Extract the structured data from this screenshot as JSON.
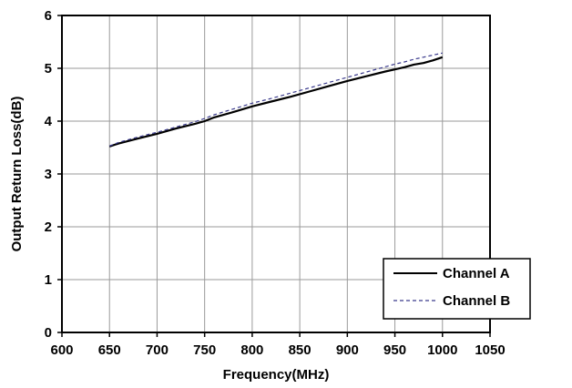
{
  "chart_data": {
    "type": "line",
    "title": "",
    "xlabel": "Frequency(MHz)",
    "ylabel": "Output Return Loss(dB)",
    "xlim": [
      600,
      1050
    ],
    "ylim": [
      0,
      6
    ],
    "xticks": [
      "600",
      "650",
      "700",
      "750",
      "800",
      "850",
      "900",
      "950",
      "1000",
      "1050"
    ],
    "yticks": [
      "0",
      "1",
      "2",
      "3",
      "4",
      "5",
      "6"
    ],
    "grid": true,
    "legend_position": "bottom-right",
    "series": [
      {
        "name": "Channel A",
        "style": "solid",
        "color": "#000000",
        "x": [
          650,
          660,
          680,
          700,
          720,
          740,
          750,
          760,
          780,
          800,
          820,
          840,
          860,
          880,
          900,
          920,
          940,
          950,
          960,
          970,
          980,
          990,
          1000
        ],
        "y": [
          3.52,
          3.58,
          3.67,
          3.76,
          3.86,
          3.95,
          4.0,
          4.07,
          4.17,
          4.28,
          4.37,
          4.46,
          4.56,
          4.66,
          4.76,
          4.85,
          4.94,
          4.98,
          5.02,
          5.07,
          5.1,
          5.15,
          5.21
        ]
      },
      {
        "name": "Channel B",
        "style": "dashed",
        "color": "#3a3a8c",
        "x": [
          650,
          660,
          680,
          700,
          720,
          740,
          750,
          760,
          780,
          800,
          820,
          840,
          860,
          880,
          900,
          920,
          940,
          950,
          960,
          970,
          980,
          990,
          1000
        ],
        "y": [
          3.53,
          3.6,
          3.7,
          3.79,
          3.89,
          3.99,
          4.05,
          4.12,
          4.23,
          4.34,
          4.43,
          4.53,
          4.63,
          4.73,
          4.83,
          4.93,
          5.03,
          5.08,
          5.12,
          5.17,
          5.21,
          5.25,
          5.29
        ]
      }
    ]
  }
}
